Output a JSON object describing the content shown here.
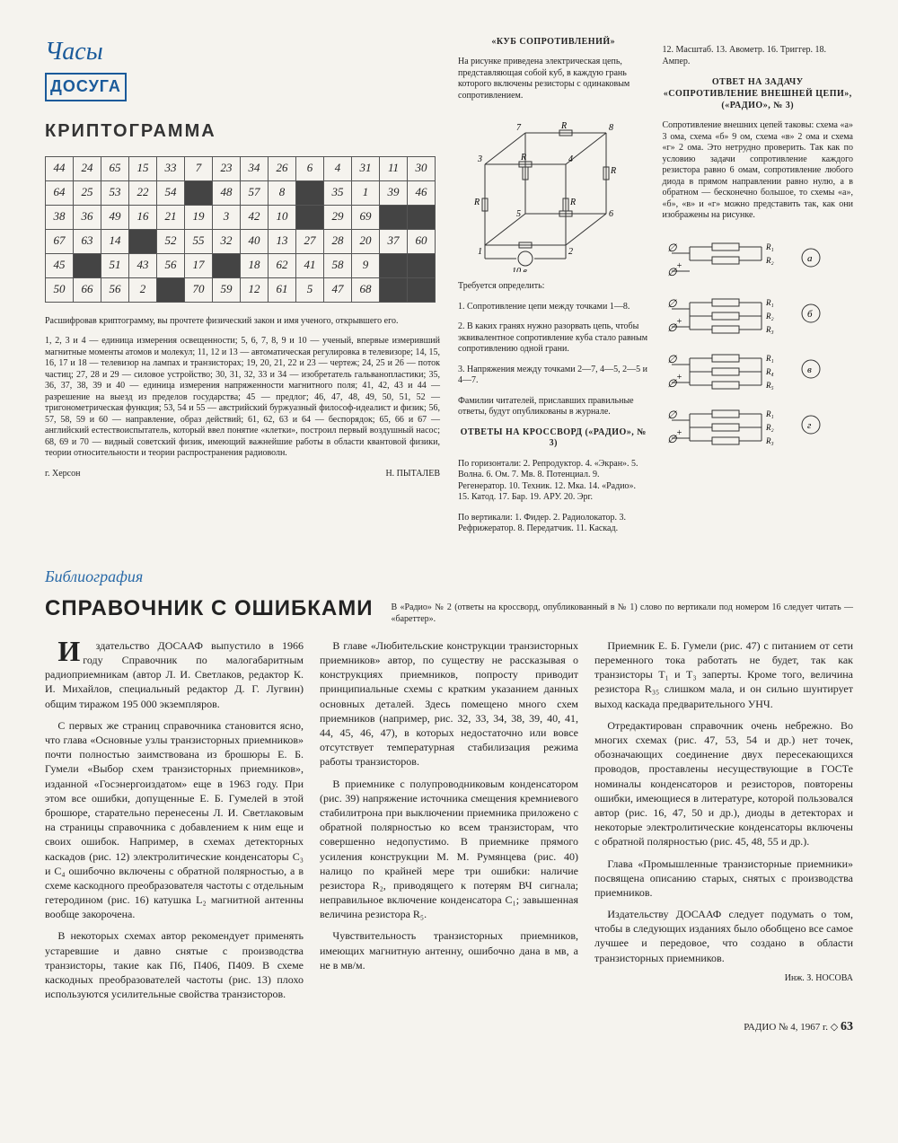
{
  "logo": {
    "script": "Часы",
    "box": "ДОСУГА"
  },
  "krypto": {
    "title": "КРИПТОГРАММА",
    "grid": [
      [
        "44",
        "24",
        "65",
        "15",
        "33",
        "7",
        "23",
        "34",
        "26",
        "6",
        "4",
        "31",
        "11",
        "30"
      ],
      [
        "64",
        "25",
        "53",
        "22",
        "54",
        "B",
        "48",
        "57",
        "8",
        "B",
        "35",
        "1",
        "39",
        "46"
      ],
      [
        "38",
        "36",
        "49",
        "16",
        "21",
        "19",
        "3",
        "42",
        "10",
        "B",
        "29",
        "69",
        "B",
        "B"
      ],
      [
        "67",
        "63",
        "14",
        "B",
        "52",
        "55",
        "32",
        "40",
        "13",
        "27",
        "28",
        "20",
        "37",
        "60"
      ],
      [
        "45",
        "B",
        "51",
        "43",
        "56",
        "17",
        "B",
        "18",
        "62",
        "41",
        "58",
        "9",
        "B",
        "B"
      ],
      [
        "50",
        "66",
        "56",
        "2",
        "B",
        "70",
        "59",
        "12",
        "61",
        "5",
        "47",
        "68",
        "B",
        "B"
      ]
    ],
    "intro": "Расшифровав криптограмму, вы прочтете физический закон и имя ученого, открывшего его.",
    "clues": "1, 2, 3 и 4 — единица измерения освещенности; 5, 6, 7, 8, 9 и 10 — ученый, впервые измеривший магнитные моменты атомов и молекул; 11, 12 и 13 — автоматическая регулировка в телевизоре; 14, 15, 16, 17 и 18 — телевизор на лампах и транзисторах; 19, 20, 21, 22 и 23 — чертеж; 24, 25 и 26 — поток частиц; 27, 28 и 29 — силовое устройство; 30, 31, 32, 33 и 34 — изобретатель гальванопластики; 35, 36, 37, 38, 39 и 40 — единица измерения напряженности магнитного поля; 41, 42, 43 и 44 — разрешение на выезд из пределов государства; 45 — предлог; 46, 47, 48, 49, 50, 51, 52 — тригонометрическая функция; 53, 54 и 55 — австрийский буржуазный философ-идеалист и физик; 56, 57, 58, 59 и 60 — направление, образ действий; 61, 62, 63 и 64 — беспорядок; 65, 66 и 67 — английский естествоиспытатель, который ввел понятие «клетки», построил первый воздушный насос; 68, 69 и 70 — видный советский физик, имеющий важнейшие работы в области квантовой физики, теории относительности и теории распространения радиоволн.",
    "city": "г. Херсон",
    "author": "Н. ПЫТАЛЕВ"
  },
  "cube": {
    "title": "«КУБ СОПРОТИВЛЕНИЙ»",
    "intro": "На рисунке приведена электрическая цепь, представляющая собой куб, в каждую грань которого включены резисторы с одинаковым сопротивлением.",
    "tasks_head": "Требуется определить:",
    "t1": "1. Сопротивление цепи между точками 1—8.",
    "t2": "2. В каких гранях нужно разорвать цепь, чтобы эквивалентное сопротивление куба стало равным сопротивлению одной грани.",
    "t3": "3. Напряжения между точками 2—7, 4—5, 2—5 и 4—7.",
    "note": "Фамилии читателей, приславших правильные ответы, будут опубликованы в журнале."
  },
  "crossword": {
    "head": "ОТВЕТЫ НА КРОССВОРД («РАДИО», № 3)",
    "horiz": "По горизонтали: 2. Репродуктор. 4. «Экран». 5. Волна. 6. Ом. 7. Мв. 8. Потенциал. 9. Регенератор. 10. Техник. 12. Мка. 14. «Радио». 15. Катод. 17. Бар. 19. АРУ. 20. Эрг.",
    "vert": "По вертикали: 1. Фидер. 2. Радиолокатор. 3. Рефрижератор. 8. Передатчик. 11. Каскад.",
    "cont": "12. Масштаб. 13. Авометр. 16. Триггер. 18. Ампер."
  },
  "answer": {
    "head1": "ОТВЕТ НА ЗАДАЧУ",
    "head2": "«СОПРОТИВЛЕНИЕ ВНЕШНЕЙ ЦЕПИ»,",
    "head3": "(«РАДИО», № 3)",
    "body": "Сопротивление внешних цепей таковы: схема «а» 3 ома, схема «б» 9 ом, схема «в» 2 ома и схема «г» 2 ома. Это нетрудно проверить. Так как по условию задачи сопротивление каждого резистора равно 6 омам, сопротивление любого диода в прямом направлении равно нулю, а в обратном — бесконечно большое, то схемы «а», «б», «в» и «г» можно представить так, как они изображены на рисунке."
  },
  "correction": "В «Радио» № 2 (ответы на кроссворд, опубликованный в № 1) слово по вертикали под номером 16 следует читать — «бареттер».",
  "biblio": {
    "section": "Библиография",
    "title": "СПРАВОЧНИК С ОШИБКАМИ",
    "p1": "Издательство ДОСААФ выпустило в 1966 году Справочник по малогабаритным радиоприемникам (автор Л. И. Светлаков, редактор К. И. Михайлов, специальный редактор Д. Г. Лугвин) общим тиражом 195 000 экземпляров.",
    "p2": "С первых же страниц справочника становится ясно, что глава «Основные узлы транзисторных приемников» почти полностью заимствована из брошюры Е. Б. Гумели «Выбор схем транзисторных приемников», изданной «Госэнергоиздатом» еще в 1963 году. При этом все ошибки, допущенные Е. Б. Гумелей в этой брошюре, старательно перенесены Л. И. Светлаковым на страницы справочника с добавлением к ним еще и своих ошибок. Например, в схемах детекторных каскадов (рис. 12) электролитические конденсаторы C₃ и C₄ ошибочно включены с обратной полярностью, а в схеме каскодного преобразователя частоты с отдельным гетеродином (рис. 16) катушка L₂ магнитной антенны вообще закорочена.",
    "p3": "В некоторых схемах автор рекомендует применять устаревшие и давно снятые с производства транзисторы, такие как П6, П406, П409. В схеме каскодных преобразователей частоты (рис. 13) плохо используются усилительные свойства транзисторов.",
    "p4": "В главе «Любительские конструкции транзисторных приемников» автор, по существу не рассказывая о конструкциях приемников, попросту приводит принципиальные схемы с кратким указанием данных основных деталей. Здесь помещено много схем приемников (например, рис. 32, 33, 34, 38, 39, 40, 41, 44, 45, 46, 47), в которых недостаточно или вовсе отсутствует температурная стабилизация режима работы транзисторов.",
    "p5": "В приемнике с полупроводниковым конденсатором (рис. 39) напряжение источника смещения кремниевого стабилитрона при выключении приемника приложено с обратной полярностью ко всем транзисторам, что совершенно недопустимо. В приемнике прямого усиления конструкции М. М. Румянцева (рис. 40) налицо по крайней мере три ошибки: наличие резистора R₂, приводящего к потерям ВЧ сигнала; неправильное включение конденсатора C₁; завышенная величина резистора R₅.",
    "p6": "Чувствительность транзисторных приемников, имеющих магнитную антенну, ошибочно дана в мв, а не в мв/м.",
    "p7": "Приемник Е. Б. Гумели (рис. 47) с питанием от сети переменного тока работать не будет, так как транзисторы T₁ и T₃ заперты. Кроме того, величина резистора R₃₅ слишком мала, и он сильно шунтирует выход каскада предварительного УНЧ.",
    "p8": "Отредактирован справочник очень небрежно. Во многих схемах (рис. 47, 53, 54 и др.) нет точек, обозначающих соединение двух пересекающихся проводов, проставлены несуществующие в ГОСТе номиналы конденсаторов и резисторов, повторены ошибки, имеющиеся в литературе, которой пользовался автор (рис. 16, 47, 50 и др.), диоды в детекторах и некоторые электролитические конденсаторы включены с обратной полярностью (рис. 45, 48, 55 и др.).",
    "p9": "Глава «Промышленные транзисторные приемники» посвящена описанию старых, снятых с производства приемников.",
    "p10": "Издательству ДОСААФ следует подумать о том, чтобы в следующих изданиях было обобщено все самое лучшее и передовое, что создано в области транзисторных приемников.",
    "sig": "Инж. З. НОСОВА"
  },
  "footer": {
    "text": "РАДИО № 4, 1967 г. ◇",
    "page": "63"
  },
  "cube_svg": {
    "stroke": "#333",
    "fill": "none",
    "labels": [
      "1",
      "2",
      "3",
      "4",
      "5",
      "6",
      "7",
      "8"
    ],
    "R": "R",
    "bottom": "10 в"
  },
  "circuits": {
    "stroke": "#333",
    "items": [
      {
        "tag": "а",
        "r": [
          "R₁",
          "R₂"
        ]
      },
      {
        "tag": "б",
        "r": [
          "R₁",
          "R₂",
          "R₃"
        ]
      },
      {
        "tag": "в",
        "r": [
          "R₁",
          "R₄",
          "R₅"
        ]
      },
      {
        "tag": "г",
        "r": [
          "R₁",
          "R₂",
          "R₃"
        ]
      }
    ]
  }
}
